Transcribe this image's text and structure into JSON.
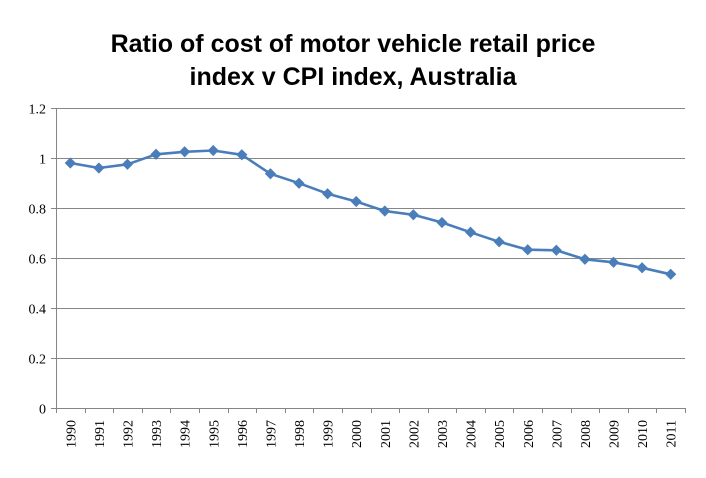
{
  "chart_data": {
    "type": "line",
    "title_lines": [
      "Ratio of cost of motor vehicle retail price",
      "index v CPI index, Australia"
    ],
    "xlabel": "",
    "ylabel": "",
    "categories": [
      "1990",
      "1991",
      "1992",
      "1993",
      "1994",
      "1995",
      "1996",
      "1997",
      "1998",
      "1999",
      "2000",
      "2001",
      "2002",
      "2003",
      "2004",
      "2005",
      "2006",
      "2007",
      "2008",
      "2009",
      "2010",
      "2011"
    ],
    "series": [
      {
        "name": "Ratio",
        "color": "#4a7ebb",
        "marker": "diamond",
        "values": [
          0.98,
          0.96,
          0.975,
          1.015,
          1.025,
          1.03,
          1.013,
          0.937,
          0.899,
          0.857,
          0.826,
          0.788,
          0.773,
          0.742,
          0.703,
          0.665,
          0.633,
          0.631,
          0.595,
          0.583,
          0.561,
          0.535
        ]
      }
    ],
    "ylim": [
      0,
      1.2
    ],
    "yticks": [
      0,
      0.2,
      0.4,
      0.6,
      0.8,
      1,
      1.2
    ],
    "ytick_labels": [
      "0",
      "0.2",
      "0.4",
      "0.6",
      "0.8",
      "1",
      "1.2"
    ],
    "grid": "horizontal",
    "legend": "none"
  }
}
